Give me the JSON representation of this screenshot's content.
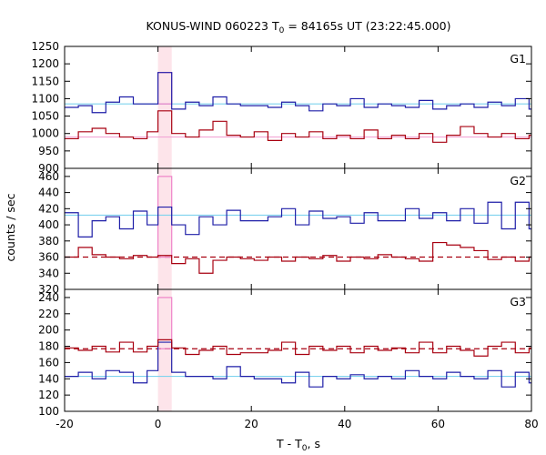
{
  "chart_data": {
    "type": "line",
    "title": "KONUS-WIND 060223 T",
    "title_subscript": "0",
    "title_suffix": " = 84165s UT (23:22:45.000)",
    "xlabel": "T - T",
    "xlabel_subscript": "0",
    "xlabel_suffix": ", s",
    "ylabel": "counts / sec",
    "xlim": [
      -20,
      80
    ],
    "xticks": [
      "-20",
      "0",
      "20",
      "40",
      "60",
      "80"
    ],
    "grid": false,
    "interval_highlight": [
      0,
      2.944
    ],
    "panels": [
      {
        "label": "G1",
        "ylim": [
          900,
          1250
        ],
        "yticks": [
          "900",
          "950",
          "1000",
          "1050",
          "1100",
          "1150",
          "1200",
          "1250"
        ],
        "background": {
          "count_rate": 1085,
          "background_level": 990
        },
        "x_bins": [
          -20,
          -17.056,
          -14.112,
          -11.168,
          -8.224,
          -5.28,
          -2.336,
          0,
          2.944,
          5.888,
          8.832,
          11.776,
          14.72,
          17.664,
          20.608,
          23.552,
          26.496,
          29.44,
          32.384,
          35.328,
          38.272,
          41.216,
          44.16,
          47.104,
          50.048,
          52.992,
          55.936,
          58.88,
          61.824,
          64.768,
          67.712,
          70.656,
          73.6,
          76.544,
          79.488
        ],
        "series": [
          {
            "values": [
              1075,
              1080,
              1060,
              1090,
              1105,
              1085,
              1085,
              1175,
              1070,
              1090,
              1080,
              1105,
              1085,
              1080,
              1080,
              1075,
              1090,
              1080,
              1065,
              1085,
              1080,
              1100,
              1075,
              1085,
              1080,
              1075,
              1095,
              1070,
              1080,
              1085,
              1075,
              1090,
              1080,
              1100,
              1070
            ],
            "color": "#1f1fa8"
          },
          {
            "values": [
              985,
              1005,
              1015,
              1000,
              990,
              985,
              1005,
              1065,
              1000,
              990,
              1010,
              1035,
              995,
              990,
              1005,
              980,
              1000,
              990,
              1005,
              985,
              995,
              985,
              1010,
              985,
              995,
              985,
              1000,
              975,
              995,
              1020,
              1000,
              990,
              1000,
              985,
              995
            ],
            "color": "#a80010"
          }
        ],
        "burst_band": [
          1085,
          1175
        ]
      },
      {
        "label": "G2",
        "ylim": [
          320,
          470
        ],
        "yticks": [
          "320",
          "340",
          "360",
          "380",
          "400",
          "420",
          "440",
          "460"
        ],
        "background": {
          "count_rate": 412,
          "background_level": 360
        },
        "x_bins": [
          -20,
          -17.056,
          -14.112,
          -11.168,
          -8.224,
          -5.28,
          -2.336,
          0,
          2.944,
          5.888,
          8.832,
          11.776,
          14.72,
          17.664,
          20.608,
          23.552,
          26.496,
          29.44,
          32.384,
          35.328,
          38.272,
          41.216,
          44.16,
          47.104,
          50.048,
          52.992,
          55.936,
          58.88,
          61.824,
          64.768,
          67.712,
          70.656,
          73.6,
          76.544,
          79.488
        ],
        "series": [
          {
            "values": [
              415,
              385,
              405,
              410,
              395,
              417,
              400,
              422,
              400,
              388,
              410,
              400,
              418,
              405,
              405,
              410,
              420,
              400,
              417,
              408,
              410,
              402,
              415,
              405,
              405,
              420,
              408,
              415,
              405,
              420,
              402,
              428,
              395,
              428,
              395
            ],
            "color": "#1f1fa8"
          },
          {
            "values": [
              360,
              372,
              363,
              360,
              358,
              362,
              360,
              362,
              352,
              358,
              340,
              356,
              360,
              358,
              356,
              360,
              355,
              360,
              358,
              362,
              355,
              360,
              358,
              363,
              360,
              358,
              355,
              378,
              375,
              372,
              368,
              357,
              360,
              355,
              360
            ],
            "color": "#a80010"
          }
        ],
        "burst_band": [
          360,
          460
        ]
      },
      {
        "label": "G3",
        "ylim": [
          100,
          250
        ],
        "yticks": [
          "100",
          "120",
          "140",
          "160",
          "180",
          "200",
          "220",
          "240"
        ],
        "background": {
          "count_rate": 143,
          "background_level": 177
        },
        "x_bins": [
          -20,
          -17.056,
          -14.112,
          -11.168,
          -8.224,
          -5.28,
          -2.336,
          0,
          2.944,
          5.888,
          8.832,
          11.776,
          14.72,
          17.664,
          20.608,
          23.552,
          26.496,
          29.44,
          32.384,
          35.328,
          38.272,
          41.216,
          44.16,
          47.104,
          50.048,
          52.992,
          55.936,
          58.88,
          61.824,
          64.768,
          67.712,
          70.656,
          73.6,
          76.544,
          79.488
        ],
        "series": [
          {
            "values": [
              143,
              148,
              140,
              150,
              148,
              135,
              150,
              185,
              148,
              143,
              143,
              140,
              155,
              143,
              140,
              140,
              135,
              148,
              130,
              143,
              140,
              145,
              140,
              143,
              140,
              150,
              143,
              140,
              148,
              143,
              140,
              150,
              130,
              148,
              135
            ],
            "color": "#1f1fa8"
          },
          {
            "values": [
              178,
              175,
              180,
              173,
              185,
              173,
              180,
              188,
              178,
              170,
              175,
              180,
              170,
              172,
              172,
              175,
              185,
              170,
              180,
              175,
              180,
              172,
              180,
              175,
              178,
              172,
              185,
              172,
              180,
              175,
              168,
              180,
              185,
              172,
              178
            ],
            "color": "#a80010"
          }
        ],
        "burst_band": [
          177,
          240
        ]
      }
    ]
  }
}
